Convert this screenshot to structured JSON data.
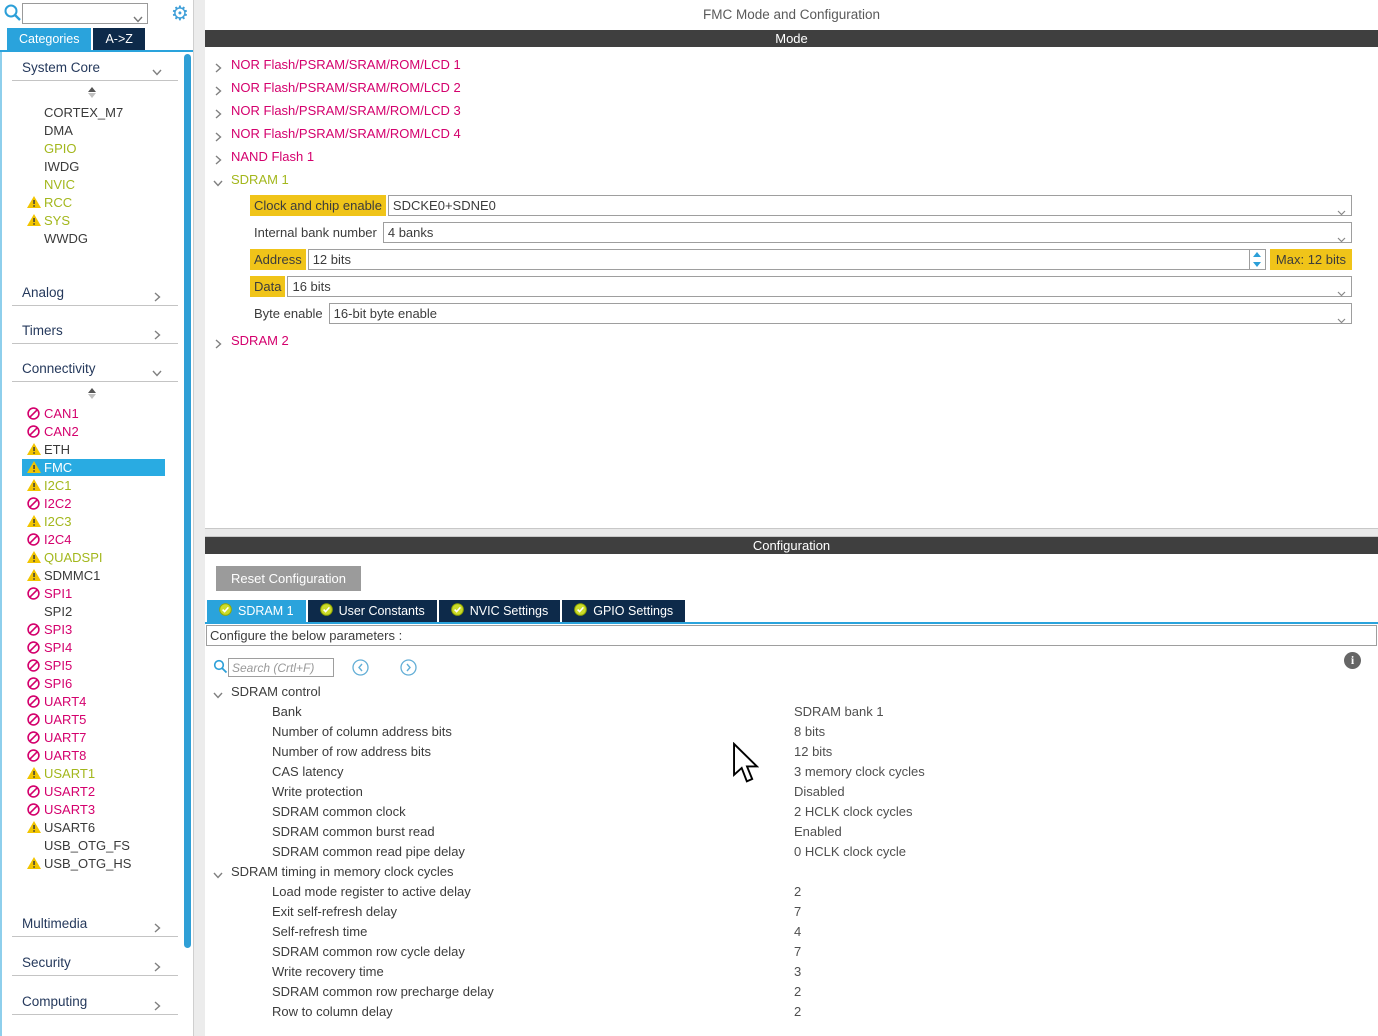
{
  "app": {
    "title": "FMC Mode and Configuration"
  },
  "sidebar": {
    "search_value": "",
    "tabs": [
      {
        "label": "Categories",
        "active": true
      },
      {
        "label": "A->Z",
        "active": false
      }
    ],
    "sections": [
      {
        "label": "System Core",
        "state": "expanded",
        "items": [
          {
            "label": "CORTEX_M7",
            "color": "dark",
            "icon": "none"
          },
          {
            "label": "DMA",
            "color": "dark",
            "icon": "none"
          },
          {
            "label": "GPIO",
            "color": "green",
            "icon": "none"
          },
          {
            "label": "IWDG",
            "color": "dark",
            "icon": "none"
          },
          {
            "label": "NVIC",
            "color": "green",
            "icon": "none"
          },
          {
            "label": "RCC",
            "color": "green",
            "icon": "warning"
          },
          {
            "label": "SYS",
            "color": "green",
            "icon": "warning"
          },
          {
            "label": "WWDG",
            "color": "dark",
            "icon": "none"
          }
        ]
      },
      {
        "label": "Analog",
        "state": "collapsed",
        "items": []
      },
      {
        "label": "Timers",
        "state": "collapsed",
        "items": []
      },
      {
        "label": "Connectivity",
        "state": "expanded",
        "items": [
          {
            "label": "CAN1",
            "color": "pink",
            "icon": "no-entry"
          },
          {
            "label": "CAN2",
            "color": "pink",
            "icon": "no-entry"
          },
          {
            "label": "ETH",
            "color": "dark",
            "icon": "warning"
          },
          {
            "label": "FMC",
            "color": "dark",
            "icon": "warning",
            "selected": true
          },
          {
            "label": "I2C1",
            "color": "green",
            "icon": "warning"
          },
          {
            "label": "I2C2",
            "color": "pink",
            "icon": "no-entry"
          },
          {
            "label": "I2C3",
            "color": "green",
            "icon": "warning"
          },
          {
            "label": "I2C4",
            "color": "pink",
            "icon": "no-entry"
          },
          {
            "label": "QUADSPI",
            "color": "green",
            "icon": "warning"
          },
          {
            "label": "SDMMC1",
            "color": "dark",
            "icon": "warning"
          },
          {
            "label": "SPI1",
            "color": "pink",
            "icon": "no-entry"
          },
          {
            "label": "SPI2",
            "color": "dark",
            "icon": "none"
          },
          {
            "label": "SPI3",
            "color": "pink",
            "icon": "no-entry"
          },
          {
            "label": "SPI4",
            "color": "pink",
            "icon": "no-entry"
          },
          {
            "label": "SPI5",
            "color": "pink",
            "icon": "no-entry"
          },
          {
            "label": "SPI6",
            "color": "pink",
            "icon": "no-entry"
          },
          {
            "label": "UART4",
            "color": "pink",
            "icon": "no-entry"
          },
          {
            "label": "UART5",
            "color": "pink",
            "icon": "no-entry"
          },
          {
            "label": "UART7",
            "color": "pink",
            "icon": "no-entry"
          },
          {
            "label": "UART8",
            "color": "pink",
            "icon": "no-entry"
          },
          {
            "label": "USART1",
            "color": "green",
            "icon": "warning"
          },
          {
            "label": "USART2",
            "color": "pink",
            "icon": "no-entry"
          },
          {
            "label": "USART3",
            "color": "pink",
            "icon": "no-entry"
          },
          {
            "label": "USART6",
            "color": "dark",
            "icon": "warning"
          },
          {
            "label": "USB_OTG_FS",
            "color": "dark",
            "icon": "none"
          },
          {
            "label": "USB_OTG_HS",
            "color": "dark",
            "icon": "warning"
          }
        ]
      },
      {
        "label": "Multimedia",
        "state": "collapsed",
        "items": []
      },
      {
        "label": "Security",
        "state": "collapsed",
        "items": []
      },
      {
        "label": "Computing",
        "state": "collapsed",
        "items": []
      }
    ]
  },
  "mode_panel": {
    "header": "Mode",
    "tree": [
      {
        "label": "NOR Flash/PSRAM/SRAM/ROM/LCD 1",
        "state": "collapsed",
        "color": "pink"
      },
      {
        "label": "NOR Flash/PSRAM/SRAM/ROM/LCD 2",
        "state": "collapsed",
        "color": "pink"
      },
      {
        "label": "NOR Flash/PSRAM/SRAM/ROM/LCD 3",
        "state": "collapsed",
        "color": "pink"
      },
      {
        "label": "NOR Flash/PSRAM/SRAM/ROM/LCD 4",
        "state": "collapsed",
        "color": "pink"
      },
      {
        "label": "NAND Flash 1",
        "state": "collapsed",
        "color": "pink"
      },
      {
        "label": "SDRAM 1",
        "state": "expanded",
        "color": "green"
      },
      {
        "label": "SDRAM 2",
        "state": "collapsed",
        "color": "pink"
      }
    ],
    "sdram1_form": [
      {
        "label": "Clock and chip enable",
        "highlight": true,
        "control": "select",
        "value": "SDCKE0+SDNE0"
      },
      {
        "label": "Internal bank number",
        "highlight": false,
        "control": "select",
        "value": "4 banks"
      },
      {
        "label": "Address",
        "highlight": true,
        "control": "spinner",
        "value": "12 bits",
        "suffix": "Max: 12 bits"
      },
      {
        "label": "Data",
        "highlight": true,
        "control": "select",
        "value": "16 bits"
      },
      {
        "label": "Byte enable",
        "highlight": false,
        "control": "select",
        "value": "16-bit byte enable"
      }
    ]
  },
  "config_panel": {
    "header": "Configuration",
    "reset_button": "Reset Configuration",
    "tabs": [
      {
        "label": "SDRAM 1",
        "active": true
      },
      {
        "label": "User Constants",
        "active": false
      },
      {
        "label": "NVIC Settings",
        "active": false
      },
      {
        "label": "GPIO Settings",
        "active": false
      }
    ],
    "note": "Configure the below parameters :",
    "search_placeholder": "Search (Crtl+F)",
    "sections": [
      {
        "label": "SDRAM control",
        "params": [
          {
            "name": "Bank",
            "value": "SDRAM bank 1"
          },
          {
            "name": "Number of column address bits",
            "value": "8 bits"
          },
          {
            "name": "Number of row address bits",
            "value": "12 bits"
          },
          {
            "name": "CAS latency",
            "value": "3 memory clock cycles"
          },
          {
            "name": "Write protection",
            "value": "Disabled"
          },
          {
            "name": "SDRAM common clock",
            "value": "2 HCLK clock cycles"
          },
          {
            "name": "SDRAM common burst read",
            "value": "Enabled"
          },
          {
            "name": "SDRAM common read pipe delay",
            "value": "0 HCLK clock cycle"
          }
        ]
      },
      {
        "label": "SDRAM timing in memory clock cycles",
        "params": [
          {
            "name": "Load mode register to active delay",
            "value": "2"
          },
          {
            "name": "Exit self-refresh delay",
            "value": "7"
          },
          {
            "name": "Self-refresh time",
            "value": "4"
          },
          {
            "name": "SDRAM common row cycle delay",
            "value": "7"
          },
          {
            "name": "Write recovery time",
            "value": "3"
          },
          {
            "name": "SDRAM common row precharge delay",
            "value": "2"
          },
          {
            "name": "Row to column delay",
            "value": "2"
          }
        ]
      }
    ]
  },
  "colors": {
    "accent_blue": "#2aa3dc",
    "selection_blue": "#29abe2",
    "navy": "#0d2a4a",
    "disabled_pink": "#d4006d",
    "active_green": "#a3b71c",
    "highlight_gold": "#f0c419",
    "section_bar": "#3f3f3f"
  }
}
